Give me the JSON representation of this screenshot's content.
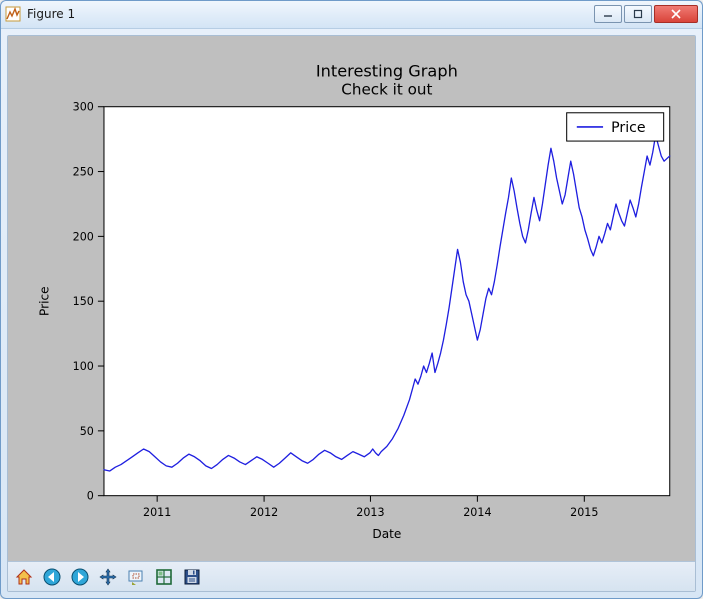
{
  "window": {
    "title": "Figure 1"
  },
  "toolbar": {
    "home": "Home",
    "back": "Back",
    "forward": "Forward",
    "pan": "Pan",
    "zoom": "Zoom",
    "subplots": "Configure subplots",
    "save": "Save"
  },
  "chart": {
    "type": "line",
    "title": "Interesting Graph",
    "subtitle": "Check it out",
    "title_fontsize": 16,
    "subtitle_fontsize": 15,
    "xlabel": "Date",
    "ylabel": "Price",
    "label_fontsize": 12,
    "tick_fontsize": 11,
    "legend": {
      "label": "Price",
      "position": "upper-right",
      "line_color": "#1f1fe0",
      "fontsize": 14
    },
    "figure_bg": "#bfbfbf",
    "axes_bg": "#ffffff",
    "axes_border_color": "#000000",
    "tick_color": "#000000",
    "line_color": "#1f1fe0",
    "line_width": 1.3,
    "x_ticks": [
      {
        "pos": 0.094,
        "label": "2011"
      },
      {
        "pos": 0.283,
        "label": "2012"
      },
      {
        "pos": 0.471,
        "label": "2013"
      },
      {
        "pos": 0.66,
        "label": "2014"
      },
      {
        "pos": 0.849,
        "label": "2015"
      }
    ],
    "y_ticks": [
      {
        "value": 0,
        "label": "0"
      },
      {
        "value": 50,
        "label": "50"
      },
      {
        "value": 100,
        "label": "100"
      },
      {
        "value": 150,
        "label": "150"
      },
      {
        "value": 200,
        "label": "200"
      },
      {
        "value": 250,
        "label": "250"
      },
      {
        "value": 300,
        "label": "300"
      }
    ],
    "y_lim": [
      0,
      300
    ],
    "x_fraction_range": [
      0,
      1
    ],
    "series": [
      {
        "x": 0.0,
        "y": 20
      },
      {
        "x": 0.01,
        "y": 19
      },
      {
        "x": 0.02,
        "y": 22
      },
      {
        "x": 0.03,
        "y": 24
      },
      {
        "x": 0.04,
        "y": 27
      },
      {
        "x": 0.05,
        "y": 30
      },
      {
        "x": 0.06,
        "y": 33
      },
      {
        "x": 0.07,
        "y": 36
      },
      {
        "x": 0.08,
        "y": 34
      },
      {
        "x": 0.09,
        "y": 30
      },
      {
        "x": 0.1,
        "y": 26
      },
      {
        "x": 0.11,
        "y": 23
      },
      {
        "x": 0.12,
        "y": 22
      },
      {
        "x": 0.13,
        "y": 25
      },
      {
        "x": 0.14,
        "y": 29
      },
      {
        "x": 0.15,
        "y": 32
      },
      {
        "x": 0.16,
        "y": 30
      },
      {
        "x": 0.17,
        "y": 27
      },
      {
        "x": 0.18,
        "y": 23
      },
      {
        "x": 0.19,
        "y": 21
      },
      {
        "x": 0.2,
        "y": 24
      },
      {
        "x": 0.21,
        "y": 28
      },
      {
        "x": 0.22,
        "y": 31
      },
      {
        "x": 0.23,
        "y": 29
      },
      {
        "x": 0.24,
        "y": 26
      },
      {
        "x": 0.25,
        "y": 24
      },
      {
        "x": 0.26,
        "y": 27
      },
      {
        "x": 0.27,
        "y": 30
      },
      {
        "x": 0.28,
        "y": 28
      },
      {
        "x": 0.29,
        "y": 25
      },
      {
        "x": 0.3,
        "y": 22
      },
      {
        "x": 0.31,
        "y": 25
      },
      {
        "x": 0.32,
        "y": 29
      },
      {
        "x": 0.33,
        "y": 33
      },
      {
        "x": 0.34,
        "y": 30
      },
      {
        "x": 0.35,
        "y": 27
      },
      {
        "x": 0.36,
        "y": 25
      },
      {
        "x": 0.37,
        "y": 28
      },
      {
        "x": 0.38,
        "y": 32
      },
      {
        "x": 0.39,
        "y": 35
      },
      {
        "x": 0.4,
        "y": 33
      },
      {
        "x": 0.41,
        "y": 30
      },
      {
        "x": 0.42,
        "y": 28
      },
      {
        "x": 0.43,
        "y": 31
      },
      {
        "x": 0.44,
        "y": 34
      },
      {
        "x": 0.45,
        "y": 32
      },
      {
        "x": 0.46,
        "y": 30
      },
      {
        "x": 0.47,
        "y": 33
      },
      {
        "x": 0.475,
        "y": 36
      },
      {
        "x": 0.48,
        "y": 33
      },
      {
        "x": 0.485,
        "y": 31
      },
      {
        "x": 0.49,
        "y": 34
      },
      {
        "x": 0.5,
        "y": 38
      },
      {
        "x": 0.51,
        "y": 44
      },
      {
        "x": 0.52,
        "y": 52
      },
      {
        "x": 0.53,
        "y": 62
      },
      {
        "x": 0.54,
        "y": 74
      },
      {
        "x": 0.545,
        "y": 82
      },
      {
        "x": 0.55,
        "y": 90
      },
      {
        "x": 0.555,
        "y": 86
      },
      {
        "x": 0.56,
        "y": 92
      },
      {
        "x": 0.565,
        "y": 100
      },
      {
        "x": 0.57,
        "y": 95
      },
      {
        "x": 0.575,
        "y": 102
      },
      {
        "x": 0.58,
        "y": 110
      },
      {
        "x": 0.585,
        "y": 95
      },
      {
        "x": 0.59,
        "y": 102
      },
      {
        "x": 0.595,
        "y": 110
      },
      {
        "x": 0.6,
        "y": 120
      },
      {
        "x": 0.605,
        "y": 132
      },
      {
        "x": 0.61,
        "y": 145
      },
      {
        "x": 0.615,
        "y": 160
      },
      {
        "x": 0.62,
        "y": 175
      },
      {
        "x": 0.625,
        "y": 190
      },
      {
        "x": 0.63,
        "y": 180
      },
      {
        "x": 0.635,
        "y": 165
      },
      {
        "x": 0.64,
        "y": 155
      },
      {
        "x": 0.645,
        "y": 150
      },
      {
        "x": 0.65,
        "y": 140
      },
      {
        "x": 0.655,
        "y": 130
      },
      {
        "x": 0.66,
        "y": 120
      },
      {
        "x": 0.665,
        "y": 128
      },
      {
        "x": 0.67,
        "y": 140
      },
      {
        "x": 0.675,
        "y": 152
      },
      {
        "x": 0.68,
        "y": 160
      },
      {
        "x": 0.685,
        "y": 155
      },
      {
        "x": 0.69,
        "y": 165
      },
      {
        "x": 0.695,
        "y": 178
      },
      {
        "x": 0.7,
        "y": 192
      },
      {
        "x": 0.705,
        "y": 205
      },
      {
        "x": 0.71,
        "y": 218
      },
      {
        "x": 0.715,
        "y": 230
      },
      {
        "x": 0.72,
        "y": 245
      },
      {
        "x": 0.725,
        "y": 235
      },
      {
        "x": 0.73,
        "y": 222
      },
      {
        "x": 0.735,
        "y": 210
      },
      {
        "x": 0.74,
        "y": 200
      },
      {
        "x": 0.745,
        "y": 195
      },
      {
        "x": 0.75,
        "y": 205
      },
      {
        "x": 0.755,
        "y": 218
      },
      {
        "x": 0.76,
        "y": 230
      },
      {
        "x": 0.765,
        "y": 220
      },
      {
        "x": 0.77,
        "y": 212
      },
      {
        "x": 0.775,
        "y": 225
      },
      {
        "x": 0.78,
        "y": 240
      },
      {
        "x": 0.785,
        "y": 255
      },
      {
        "x": 0.79,
        "y": 268
      },
      {
        "x": 0.795,
        "y": 258
      },
      {
        "x": 0.8,
        "y": 245
      },
      {
        "x": 0.805,
        "y": 235
      },
      {
        "x": 0.81,
        "y": 225
      },
      {
        "x": 0.815,
        "y": 232
      },
      {
        "x": 0.82,
        "y": 245
      },
      {
        "x": 0.825,
        "y": 258
      },
      {
        "x": 0.83,
        "y": 248
      },
      {
        "x": 0.835,
        "y": 235
      },
      {
        "x": 0.84,
        "y": 222
      },
      {
        "x": 0.845,
        "y": 215
      },
      {
        "x": 0.85,
        "y": 205
      },
      {
        "x": 0.855,
        "y": 198
      },
      {
        "x": 0.86,
        "y": 190
      },
      {
        "x": 0.865,
        "y": 185
      },
      {
        "x": 0.87,
        "y": 192
      },
      {
        "x": 0.875,
        "y": 200
      },
      {
        "x": 0.88,
        "y": 195
      },
      {
        "x": 0.885,
        "y": 202
      },
      {
        "x": 0.89,
        "y": 210
      },
      {
        "x": 0.895,
        "y": 205
      },
      {
        "x": 0.9,
        "y": 215
      },
      {
        "x": 0.905,
        "y": 225
      },
      {
        "x": 0.91,
        "y": 218
      },
      {
        "x": 0.915,
        "y": 212
      },
      {
        "x": 0.92,
        "y": 208
      },
      {
        "x": 0.925,
        "y": 218
      },
      {
        "x": 0.93,
        "y": 228
      },
      {
        "x": 0.935,
        "y": 222
      },
      {
        "x": 0.94,
        "y": 215
      },
      {
        "x": 0.945,
        "y": 225
      },
      {
        "x": 0.95,
        "y": 238
      },
      {
        "x": 0.955,
        "y": 250
      },
      {
        "x": 0.96,
        "y": 262
      },
      {
        "x": 0.965,
        "y": 255
      },
      {
        "x": 0.97,
        "y": 265
      },
      {
        "x": 0.975,
        "y": 278
      },
      {
        "x": 0.98,
        "y": 270
      },
      {
        "x": 0.985,
        "y": 262
      },
      {
        "x": 0.99,
        "y": 258
      },
      {
        "x": 0.995,
        "y": 260
      },
      {
        "x": 1.0,
        "y": 262
      }
    ]
  }
}
